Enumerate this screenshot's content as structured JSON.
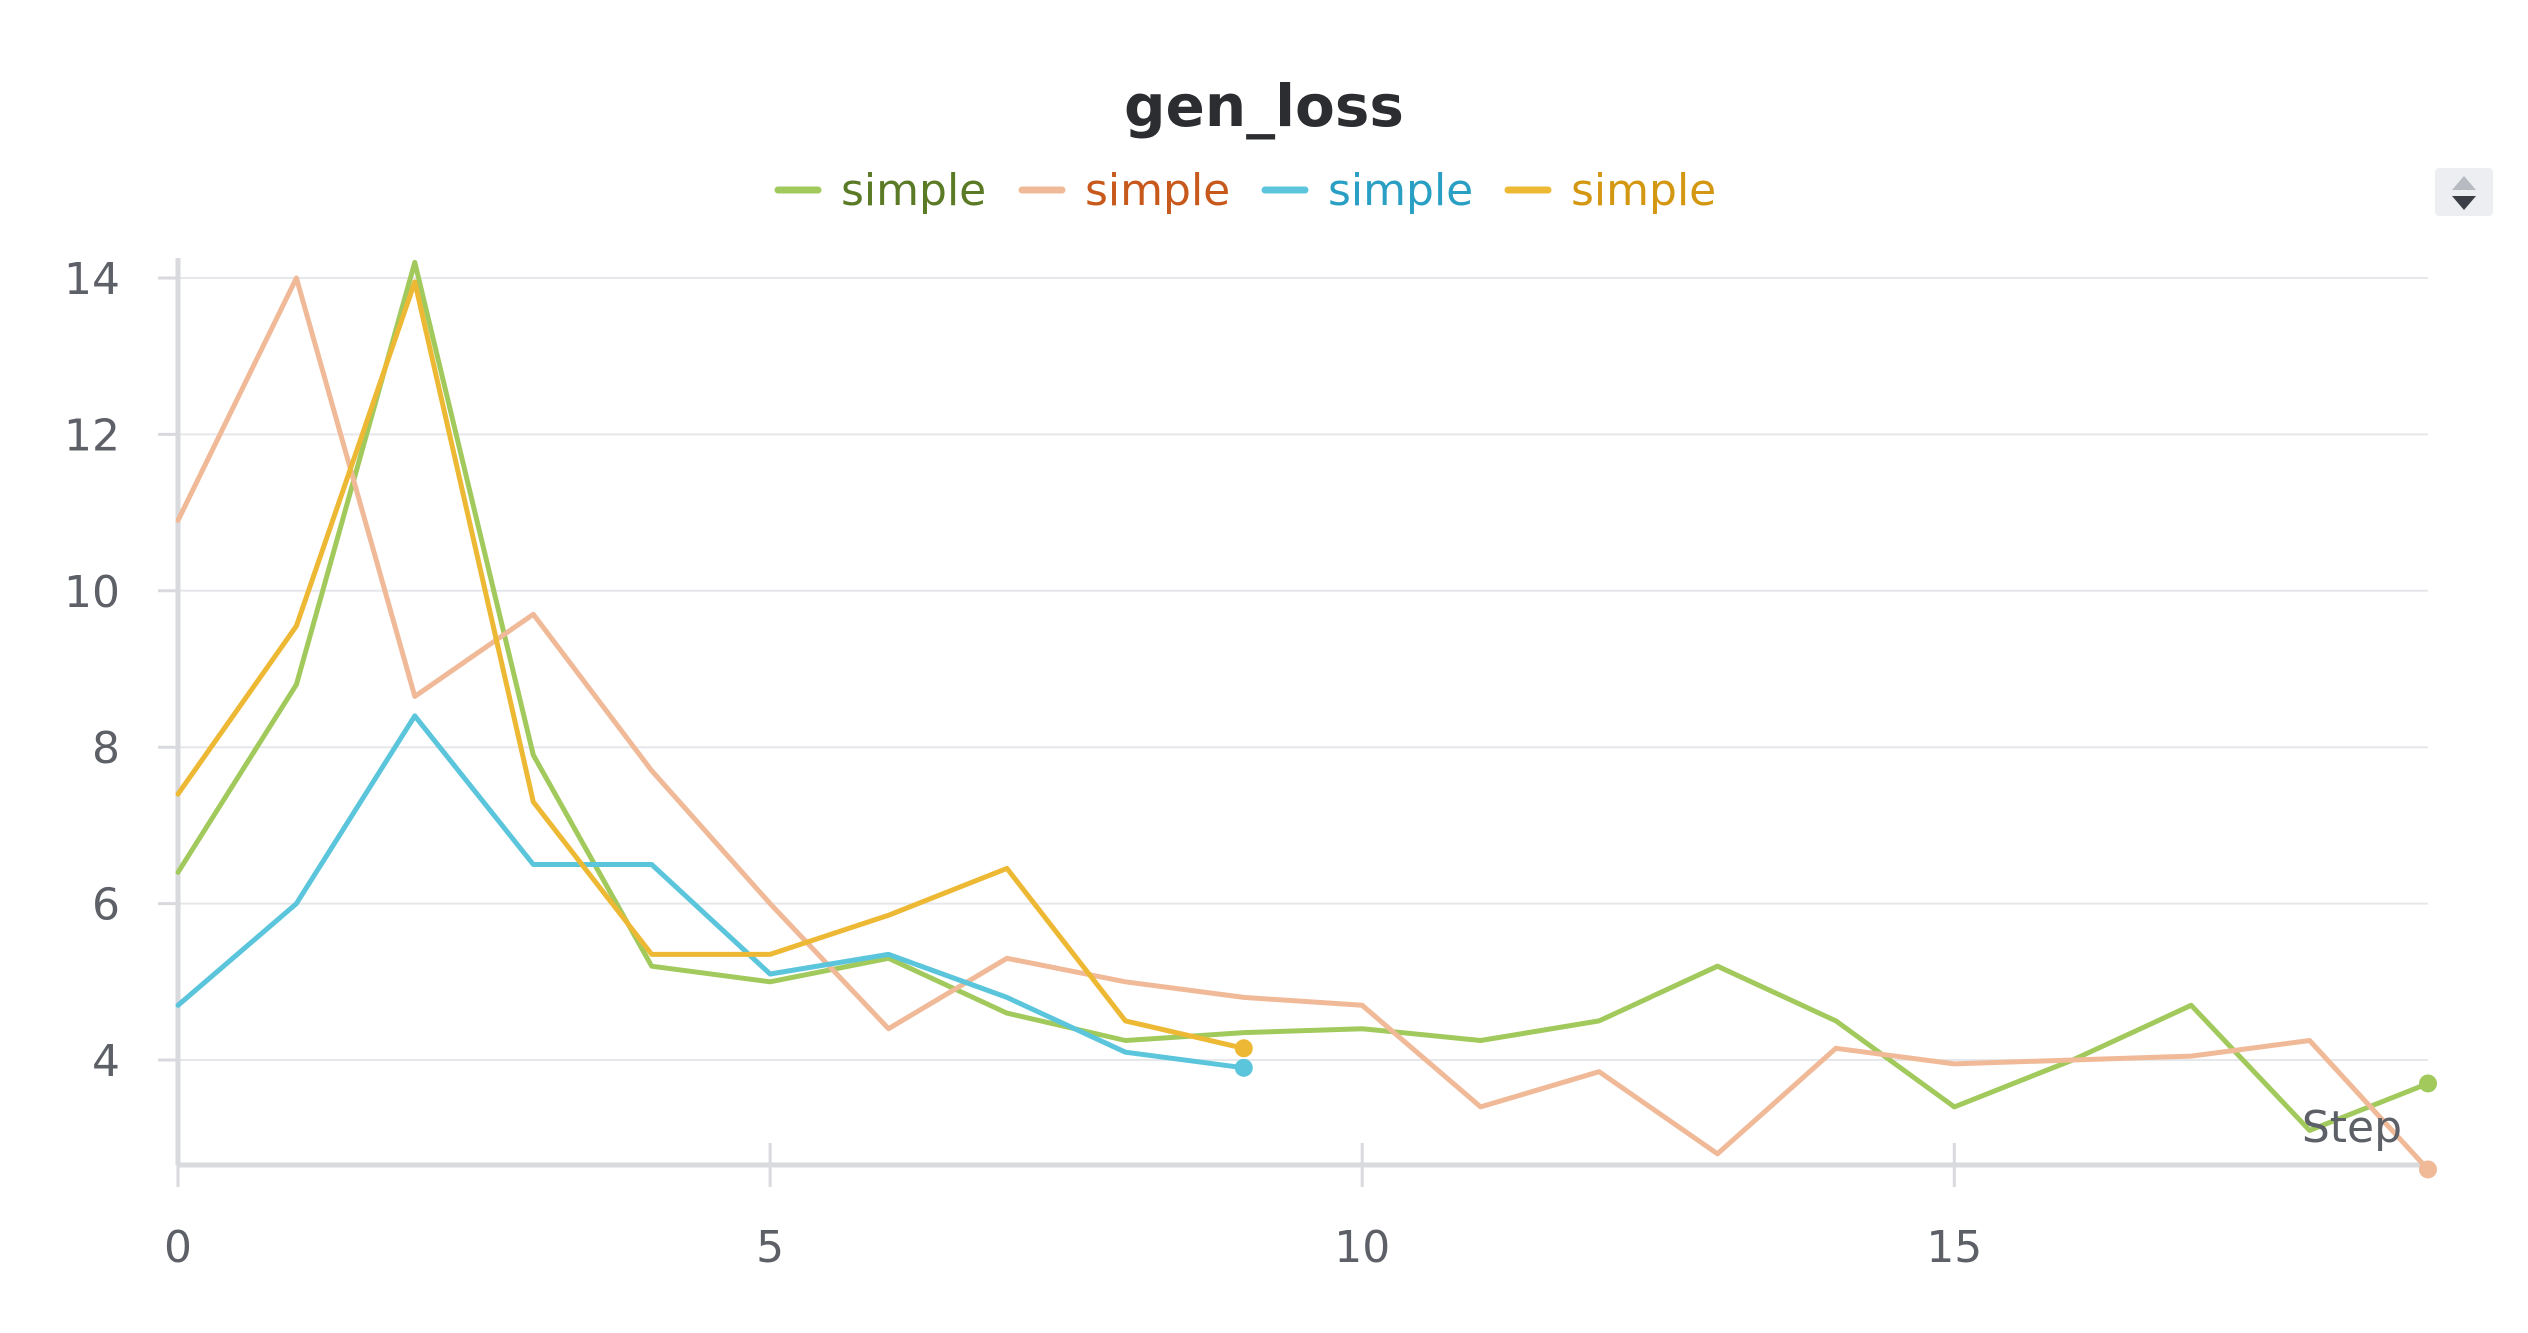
{
  "chart_data": {
    "type": "line",
    "title": "gen_loss",
    "xlabel": "Step",
    "ylabel": "",
    "x_ticks": [
      0,
      5,
      10,
      15
    ],
    "y_ticks": [
      4,
      6,
      8,
      10,
      12,
      14
    ],
    "xlim": [
      0,
      19
    ],
    "ylim": [
      2.6,
      14.4
    ],
    "grid": true,
    "legend_position": "top-center",
    "series": [
      {
        "name": "simple",
        "color": "#a1c95c",
        "legend_text_color": "#5b7a25",
        "x": [
          0,
          1,
          2,
          3,
          4,
          5,
          6,
          7,
          8,
          9,
          10,
          11,
          12,
          13,
          14,
          15,
          16,
          17,
          18,
          19
        ],
        "y": [
          6.4,
          8.8,
          14.2,
          7.9,
          5.2,
          5.0,
          5.3,
          4.6,
          4.25,
          4.35,
          4.4,
          4.25,
          4.5,
          5.2,
          4.5,
          3.4,
          4.0,
          4.7,
          3.1,
          3.7
        ]
      },
      {
        "name": "simple",
        "color": "#f0b998",
        "legend_text_color": "#c8591d",
        "x": [
          0,
          1,
          2,
          3,
          4,
          5,
          6,
          7,
          8,
          9,
          10,
          11,
          12,
          13,
          14,
          15,
          16,
          17,
          18,
          19
        ],
        "y": [
          10.9,
          14.0,
          8.65,
          9.7,
          7.7,
          6.0,
          4.4,
          5.3,
          5.0,
          4.8,
          4.7,
          3.4,
          3.85,
          2.8,
          4.15,
          3.95,
          4.0,
          4.05,
          4.25,
          2.6
        ]
      },
      {
        "name": "simple",
        "color": "#5bc5dc",
        "legend_text_color": "#2a9fc4",
        "x": [
          0,
          1,
          2,
          3,
          4,
          5,
          6,
          7,
          8,
          9
        ],
        "y": [
          4.7,
          6.0,
          8.4,
          6.5,
          6.5,
          5.1,
          5.35,
          4.8,
          4.1,
          3.9
        ]
      },
      {
        "name": "simple",
        "color": "#edb834",
        "legend_text_color": "#d39712",
        "x": [
          0,
          1,
          2,
          3,
          4,
          5,
          6,
          7,
          8,
          9
        ],
        "y": [
          7.4,
          9.55,
          13.95,
          7.3,
          5.35,
          5.35,
          5.85,
          6.45,
          4.5,
          4.15
        ]
      }
    ]
  }
}
